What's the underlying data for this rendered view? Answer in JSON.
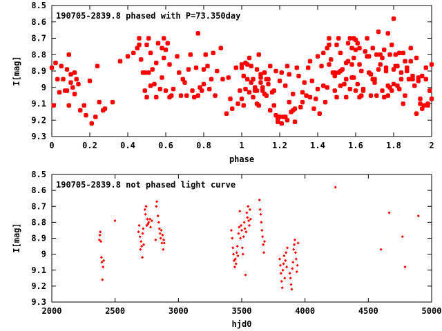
{
  "chart_data": [
    {
      "type": "scatter",
      "title": "190705-2839.8 phased with P=73.350day",
      "xlabel": "phase",
      "ylabel": "I[mag]",
      "xlim": [
        0,
        2
      ],
      "ylim": [
        9.3,
        8.5
      ],
      "y_inverted": true,
      "x_ticks": [
        "0",
        "0.2",
        "0.4",
        "0.6",
        "0.8",
        "1",
        "1.2",
        "1.4",
        "1.6",
        "1.8",
        "2"
      ],
      "y_ticks": [
        "8.5",
        "8.6",
        "8.7",
        "8.8",
        "8.9",
        "9",
        "9.1",
        "9.2",
        "9.3"
      ],
      "marker_color": "#ff0000",
      "points_base": [
        [
          0.0,
          8.88
        ],
        [
          0.01,
          9.11
        ],
        [
          0.02,
          8.85
        ],
        [
          0.03,
          8.95
        ],
        [
          0.04,
          9.03
        ],
        [
          0.05,
          8.87
        ],
        [
          0.06,
          8.95
        ],
        [
          0.07,
          9.02
        ],
        [
          0.08,
          8.89
        ],
        [
          0.08,
          9.02
        ],
        [
          0.09,
          8.8
        ],
        [
          0.09,
          9.11
        ],
        [
          0.1,
          8.92
        ],
        [
          0.1,
          8.97
        ],
        [
          0.11,
          9.0
        ],
        [
          0.12,
          8.91
        ],
        [
          0.12,
          9.04
        ],
        [
          0.13,
          8.95
        ],
        [
          0.14,
          8.98
        ],
        [
          0.15,
          9.14
        ],
        [
          0.17,
          9.11
        ],
        [
          0.18,
          9.17
        ],
        [
          0.2,
          8.96
        ],
        [
          0.21,
          9.22
        ],
        [
          0.23,
          9.18
        ],
        [
          0.24,
          8.87
        ],
        [
          0.25,
          9.09
        ],
        [
          0.27,
          9.14
        ],
        [
          0.28,
          9.13
        ],
        [
          0.32,
          9.09
        ],
        [
          0.36,
          8.84
        ],
        [
          0.4,
          8.81
        ],
        [
          0.43,
          8.79
        ],
        [
          0.45,
          8.76
        ],
        [
          0.46,
          8.7
        ],
        [
          0.46,
          8.74
        ],
        [
          0.47,
          8.83
        ],
        [
          0.48,
          8.91
        ],
        [
          0.49,
          9.02
        ],
        [
          0.49,
          8.91
        ],
        [
          0.5,
          8.74
        ],
        [
          0.5,
          9.06
        ],
        [
          0.51,
          8.91
        ],
        [
          0.51,
          8.7
        ],
        [
          0.52,
          8.99
        ],
        [
          0.52,
          8.79
        ],
        [
          0.53,
          8.89
        ],
        [
          0.54,
          8.98
        ],
        [
          0.55,
          9.06
        ],
        [
          0.55,
          8.85
        ],
        [
          0.56,
          8.73
        ],
        [
          0.57,
          9.01
        ],
        [
          0.58,
          8.76
        ],
        [
          0.58,
          8.94
        ],
        [
          0.59,
          8.82
        ],
        [
          0.59,
          8.7
        ],
        [
          0.6,
          9.02
        ],
        [
          0.6,
          8.77
        ],
        [
          0.61,
          8.73
        ],
        [
          0.62,
          8.86
        ],
        [
          0.62,
          9.06
        ],
        [
          0.63,
          9.05
        ],
        [
          0.64,
          9.01
        ],
        [
          0.66,
          8.81
        ],
        [
          0.67,
          8.91
        ],
        [
          0.68,
          9.05
        ],
        [
          0.69,
          8.95
        ],
        [
          0.7,
          8.97
        ],
        [
          0.71,
          9.05
        ],
        [
          0.72,
          8.89
        ],
        [
          0.73,
          8.8
        ],
        [
          0.74,
          9.02
        ],
        [
          0.75,
          9.06
        ],
        [
          0.76,
          8.88
        ],
        [
          0.77,
          8.67
        ],
        [
          0.77,
          9.05
        ],
        [
          0.78,
          9.0
        ],
        [
          0.79,
          9.02
        ],
        [
          0.8,
          8.98
        ],
        [
          0.8,
          8.89
        ],
        [
          0.81,
          8.8
        ],
        [
          0.82,
          8.87
        ],
        [
          0.83,
          9.01
        ],
        [
          0.84,
          8.95
        ],
        [
          0.85,
          8.79
        ],
        [
          0.86,
          9.05
        ],
        [
          0.87,
          8.9
        ],
        [
          0.89,
          8.76
        ],
        [
          0.9,
          8.95
        ],
        [
          0.92,
          9.16
        ],
        [
          0.93,
          8.94
        ],
        [
          0.94,
          9.07
        ],
        [
          0.95,
          9.13
        ],
        [
          0.97,
          8.88
        ],
        [
          0.98,
          9.1
        ],
        [
          0.99,
          9.02
        ],
        [
          1.0,
          8.86
        ],
        [
          1.0,
          9.07
        ],
        [
          1.01,
          8.93
        ],
        [
          1.02,
          9.01
        ],
        [
          1.03,
          8.86
        ],
        [
          1.04,
          8.82
        ],
        [
          1.05,
          8.97
        ],
        [
          1.06,
          9.06
        ],
        [
          1.07,
          9.0
        ],
        [
          1.08,
          9.1
        ],
        [
          1.1,
          8.94
        ],
        [
          1.11,
          9.02
        ],
        [
          1.12,
          8.91
        ],
        [
          1.13,
          9.05
        ],
        [
          1.14,
          8.95
        ],
        [
          1.15,
          8.87
        ],
        [
          1.16,
          9.03
        ],
        [
          1.17,
          9.02
        ],
        [
          1.18,
          8.9
        ],
        [
          1.19,
          9.19
        ],
        [
          1.19,
          9.21
        ],
        [
          1.2,
          9.18
        ],
        [
          1.21,
          8.91
        ],
        [
          1.22,
          9.18
        ],
        [
          1.23,
          8.99
        ],
        [
          1.24,
          9.2
        ],
        [
          1.25,
          8.92
        ],
        [
          1.26,
          9.15
        ],
        [
          1.27,
          9.04
        ],
        [
          1.28,
          9.21
        ],
        [
          1.29,
          8.88
        ],
        [
          1.3,
          8.93
        ],
        [
          1.31,
          9.12
        ],
        [
          1.32,
          9.03
        ],
        [
          1.33,
          8.97
        ],
        [
          1.34,
          9.05
        ],
        [
          1.35,
          8.88
        ],
        [
          1.36,
          9.06
        ],
        [
          1.37,
          8.96
        ],
        [
          1.38,
          9.13
        ],
        [
          1.39,
          9.07
        ],
        [
          1.4,
          9.01
        ],
        [
          1.41,
          9.16
        ],
        [
          1.42,
          8.87
        ],
        [
          1.43,
          8.99
        ],
        [
          1.44,
          9.09
        ],
        [
          1.45,
          9.0
        ],
        [
          1.46,
          8.86
        ],
        [
          1.49,
          8.93
        ],
        [
          1.52,
          8.9
        ],
        [
          1.55,
          8.95
        ],
        [
          1.56,
          8.84
        ],
        [
          1.57,
          8.7
        ],
        [
          1.58,
          8.86
        ],
        [
          1.59,
          8.94
        ],
        [
          1.6,
          8.71
        ],
        [
          1.61,
          8.98
        ],
        [
          1.62,
          8.76
        ],
        [
          1.63,
          8.9
        ],
        [
          1.64,
          9.02
        ],
        [
          1.65,
          8.78
        ],
        [
          1.66,
          8.7
        ],
        [
          1.67,
          8.81
        ],
        [
          1.68,
          8.92
        ],
        [
          1.69,
          8.76
        ],
        [
          1.7,
          8.95
        ],
        [
          1.71,
          8.8
        ],
        [
          1.72,
          8.66
        ],
        [
          1.73,
          8.86
        ],
        [
          1.74,
          8.82
        ],
        [
          1.75,
          8.77
        ],
        [
          1.76,
          8.9
        ],
        [
          1.77,
          8.99
        ],
        [
          1.78,
          8.8
        ],
        [
          1.79,
          8.74
        ],
        [
          1.8,
          8.58
        ],
        [
          1.81,
          8.87
        ],
        [
          1.82,
          8.99
        ],
        [
          1.83,
          8.79
        ],
        [
          1.84,
          8.91
        ],
        [
          1.85,
          9.1
        ],
        [
          1.86,
          8.84
        ],
        [
          1.87,
          8.88
        ],
        [
          1.88,
          8.95
        ],
        [
          1.89,
          8.84
        ],
        [
          1.9,
          8.93
        ],
        [
          1.91,
          8.99
        ],
        [
          1.92,
          8.82
        ],
        [
          1.93,
          8.96
        ],
        [
          1.94,
          9.1
        ],
        [
          1.95,
          8.93
        ],
        [
          1.96,
          9.11
        ],
        [
          1.97,
          8.95
        ],
        [
          1.98,
          9.11
        ],
        [
          1.99,
          9.02
        ]
      ]
    },
    {
      "type": "scatter",
      "title": "190705-2839.8 not phased light curve",
      "xlabel": "hjd0",
      "ylabel": "I[mag]",
      "xlim": [
        2000,
        5000
      ],
      "ylim": [
        9.3,
        8.5
      ],
      "y_inverted": true,
      "x_ticks": [
        "2000",
        "2500",
        "3000",
        "3500",
        "4000",
        "4500",
        "5000"
      ],
      "y_ticks": [
        "8.5",
        "8.6",
        "8.7",
        "8.8",
        "8.9",
        "9",
        "9.1",
        "9.2",
        "9.3"
      ],
      "marker_color": "#ff0000",
      "points": [
        [
          2375,
          8.91
        ],
        [
          2380,
          8.88
        ],
        [
          2383,
          8.86
        ],
        [
          2388,
          8.92
        ],
        [
          2392,
          9.02
        ],
        [
          2396,
          9.05
        ],
        [
          2400,
          9.16
        ],
        [
          2405,
          9.08
        ],
        [
          2410,
          9.04
        ],
        [
          2499,
          8.79
        ],
        [
          2685,
          8.86
        ],
        [
          2690,
          8.82
        ],
        [
          2697,
          8.89
        ],
        [
          2700,
          8.97
        ],
        [
          2705,
          8.92
        ],
        [
          2710,
          8.95
        ],
        [
          2715,
          9.02
        ],
        [
          2718,
          8.87
        ],
        [
          2722,
          8.84
        ],
        [
          2726,
          8.94
        ],
        [
          2735,
          8.72
        ],
        [
          2740,
          8.75
        ],
        [
          2745,
          8.7
        ],
        [
          2750,
          8.82
        ],
        [
          2755,
          8.78
        ],
        [
          2760,
          8.81
        ],
        [
          2765,
          8.8
        ],
        [
          2775,
          8.78
        ],
        [
          2780,
          8.83
        ],
        [
          2790,
          8.79
        ],
        [
          2820,
          8.91
        ],
        [
          2825,
          8.7
        ],
        [
          2830,
          8.67
        ],
        [
          2838,
          8.76
        ],
        [
          2845,
          8.8
        ],
        [
          2850,
          8.84
        ],
        [
          2855,
          8.87
        ],
        [
          2860,
          8.9
        ],
        [
          2865,
          8.85
        ],
        [
          2870,
          8.93
        ],
        [
          2875,
          8.88
        ],
        [
          2880,
          8.97
        ],
        [
          2884,
          8.91
        ],
        [
          2888,
          8.93
        ],
        [
          3418,
          8.85
        ],
        [
          3425,
          8.9
        ],
        [
          3430,
          8.96
        ],
        [
          3435,
          9.0
        ],
        [
          3440,
          9.04
        ],
        [
          3445,
          9.08
        ],
        [
          3450,
          9.03
        ],
        [
          3455,
          9.06
        ],
        [
          3460,
          8.99
        ],
        [
          3465,
          8.95
        ],
        [
          3470,
          9.01
        ],
        [
          3475,
          8.87
        ],
        [
          3480,
          8.83
        ],
        [
          3485,
          8.73
        ],
        [
          3490,
          8.9
        ],
        [
          3495,
          8.82
        ],
        [
          3500,
          8.85
        ],
        [
          3505,
          8.96
        ],
        [
          3510,
          9.0
        ],
        [
          3515,
          8.89
        ],
        [
          3520,
          8.8
        ],
        [
          3525,
          8.84
        ],
        [
          3530,
          9.13
        ],
        [
          3535,
          8.86
        ],
        [
          3540,
          8.74
        ],
        [
          3545,
          8.77
        ],
        [
          3550,
          8.7
        ],
        [
          3555,
          8.79
        ],
        [
          3560,
          8.82
        ],
        [
          3565,
          8.72
        ],
        [
          3570,
          8.78
        ],
        [
          3640,
          8.66
        ],
        [
          3645,
          8.72
        ],
        [
          3650,
          8.75
        ],
        [
          3655,
          8.8
        ],
        [
          3660,
          8.85
        ],
        [
          3665,
          8.89
        ],
        [
          3670,
          8.94
        ],
        [
          3675,
          8.99
        ],
        [
          3680,
          8.92
        ],
        [
          3800,
          9.03
        ],
        [
          3805,
          9.07
        ],
        [
          3810,
          9.12
        ],
        [
          3815,
          9.17
        ],
        [
          3820,
          9.21
        ],
        [
          3825,
          9.1
        ],
        [
          3830,
          9.06
        ],
        [
          3835,
          9.01
        ],
        [
          3840,
          9.15
        ],
        [
          3845,
          9.04
        ],
        [
          3850,
          8.99
        ],
        [
          3855,
          9.08
        ],
        [
          3860,
          8.96
        ],
        [
          3880,
          9.12
        ],
        [
          3885,
          9.15
        ],
        [
          3890,
          9.19
        ],
        [
          3895,
          9.22
        ],
        [
          3900,
          9.09
        ],
        [
          3905,
          9.05
        ],
        [
          3910,
          8.97
        ],
        [
          3915,
          8.94
        ],
        [
          3920,
          8.91
        ],
        [
          3925,
          8.99
        ],
        [
          3930,
          9.03
        ],
        [
          3935,
          9.11
        ],
        [
          3940,
          9.07
        ],
        [
          3945,
          8.93
        ],
        [
          4240,
          8.58
        ],
        [
          4600,
          8.97
        ],
        [
          4665,
          8.74
        ],
        [
          4770,
          8.89
        ],
        [
          4790,
          9.08
        ],
        [
          4895,
          8.76
        ]
      ]
    }
  ]
}
